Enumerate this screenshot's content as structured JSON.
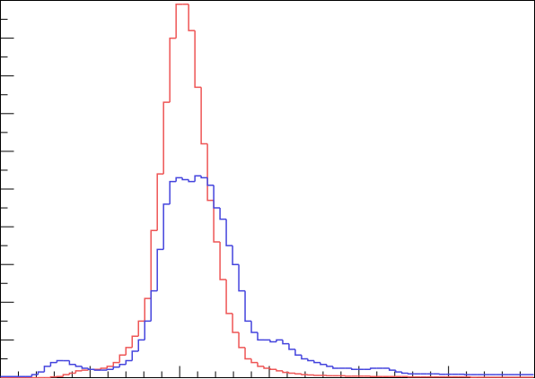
{
  "chart_data": {
    "type": "histogram",
    "bins": [
      0,
      7,
      14,
      21,
      28,
      35,
      42,
      49,
      56,
      63,
      70,
      77,
      84,
      91,
      98,
      105,
      112,
      119,
      126,
      133,
      140,
      147,
      154,
      161,
      168,
      175,
      182,
      189,
      196,
      203,
      210,
      217,
      224,
      231,
      238,
      245,
      252,
      259,
      266,
      273,
      280,
      287,
      294,
      301,
      308,
      315,
      322,
      329,
      336,
      343,
      350,
      357,
      364,
      371,
      378,
      385,
      392,
      399,
      406,
      413,
      420,
      427,
      434,
      441,
      448,
      455,
      462,
      469,
      476,
      483,
      490,
      497,
      504,
      511,
      518,
      525,
      532,
      539,
      546,
      553,
      560,
      567,
      574,
      581,
      588,
      595
    ],
    "series": [
      {
        "color": "#ee5555",
        "values": [
          0,
          0,
          0,
          0,
          0,
          0,
          0,
          0,
          0.02,
          0.03,
          0.08,
          0.12,
          0.18,
          0.2,
          0.22,
          0.22,
          0.25,
          0.3,
          0.4,
          0.6,
          0.8,
          1.1,
          1.5,
          2.1,
          3.9,
          5.4,
          7.3,
          9.0,
          9.9,
          9.9,
          9.2,
          7.7,
          6.2,
          4.7,
          3.6,
          2.6,
          1.7,
          1.2,
          0.8,
          0.5,
          0.4,
          0.3,
          0.25,
          0.22,
          0.18,
          0.14,
          0.12,
          0.1,
          0.08,
          0.07,
          0.06,
          0.06,
          0.05,
          0.05,
          0.05,
          0.04,
          0.04,
          0.04,
          0.04,
          0.03,
          0.03,
          0.03,
          0.03,
          0.03,
          0.03,
          0.02,
          0.02,
          0.02,
          0.02,
          0.02,
          0.02,
          0.02,
          0.02,
          0.02,
          0.02,
          0.01,
          0.01,
          0.01,
          0.01,
          0.01,
          0.01,
          0.01,
          0.01,
          0.01,
          0.01
        ]
      },
      {
        "color": "#4444dd",
        "values": [
          0.03,
          0.03,
          0.03,
          0.03,
          0.03,
          0.08,
          0.15,
          0.3,
          0.4,
          0.45,
          0.45,
          0.35,
          0.3,
          0.25,
          0.22,
          0.2,
          0.2,
          0.22,
          0.28,
          0.35,
          0.45,
          0.7,
          1.0,
          1.5,
          2.3,
          3.4,
          4.6,
          5.2,
          5.3,
          5.25,
          5.2,
          5.35,
          5.3,
          5.1,
          4.5,
          4.2,
          3.5,
          3.0,
          2.3,
          1.5,
          1.2,
          1.0,
          1.0,
          0.95,
          1.0,
          0.9,
          0.75,
          0.6,
          0.5,
          0.45,
          0.4,
          0.35,
          0.3,
          0.25,
          0.25,
          0.25,
          0.22,
          0.22,
          0.22,
          0.25,
          0.25,
          0.25,
          0.2,
          0.15,
          0.12,
          0.1,
          0.1,
          0.1,
          0.1,
          0.1,
          0.09,
          0.09,
          0.09,
          0.09,
          0.08,
          0.08,
          0.08,
          0.08,
          0.08,
          0.08,
          0.08,
          0.08,
          0.08,
          0.08,
          0.08
        ]
      }
    ],
    "xlim": [
      0,
      596
    ],
    "ylim": [
      0,
      10
    ],
    "xticks": [
      0,
      20,
      40,
      60,
      80,
      100,
      120,
      140,
      160,
      180,
      200,
      220,
      240,
      260,
      280,
      300,
      320,
      340,
      360,
      380,
      400,
      420,
      440,
      460,
      480,
      500,
      520,
      540,
      560,
      580
    ],
    "yticks": [
      0,
      0.5,
      1,
      1.5,
      2,
      2.5,
      3,
      3.5,
      4,
      4.5,
      5,
      5.5,
      6,
      6.5,
      7,
      7.5,
      8,
      8.5,
      9,
      9.5,
      10
    ]
  }
}
